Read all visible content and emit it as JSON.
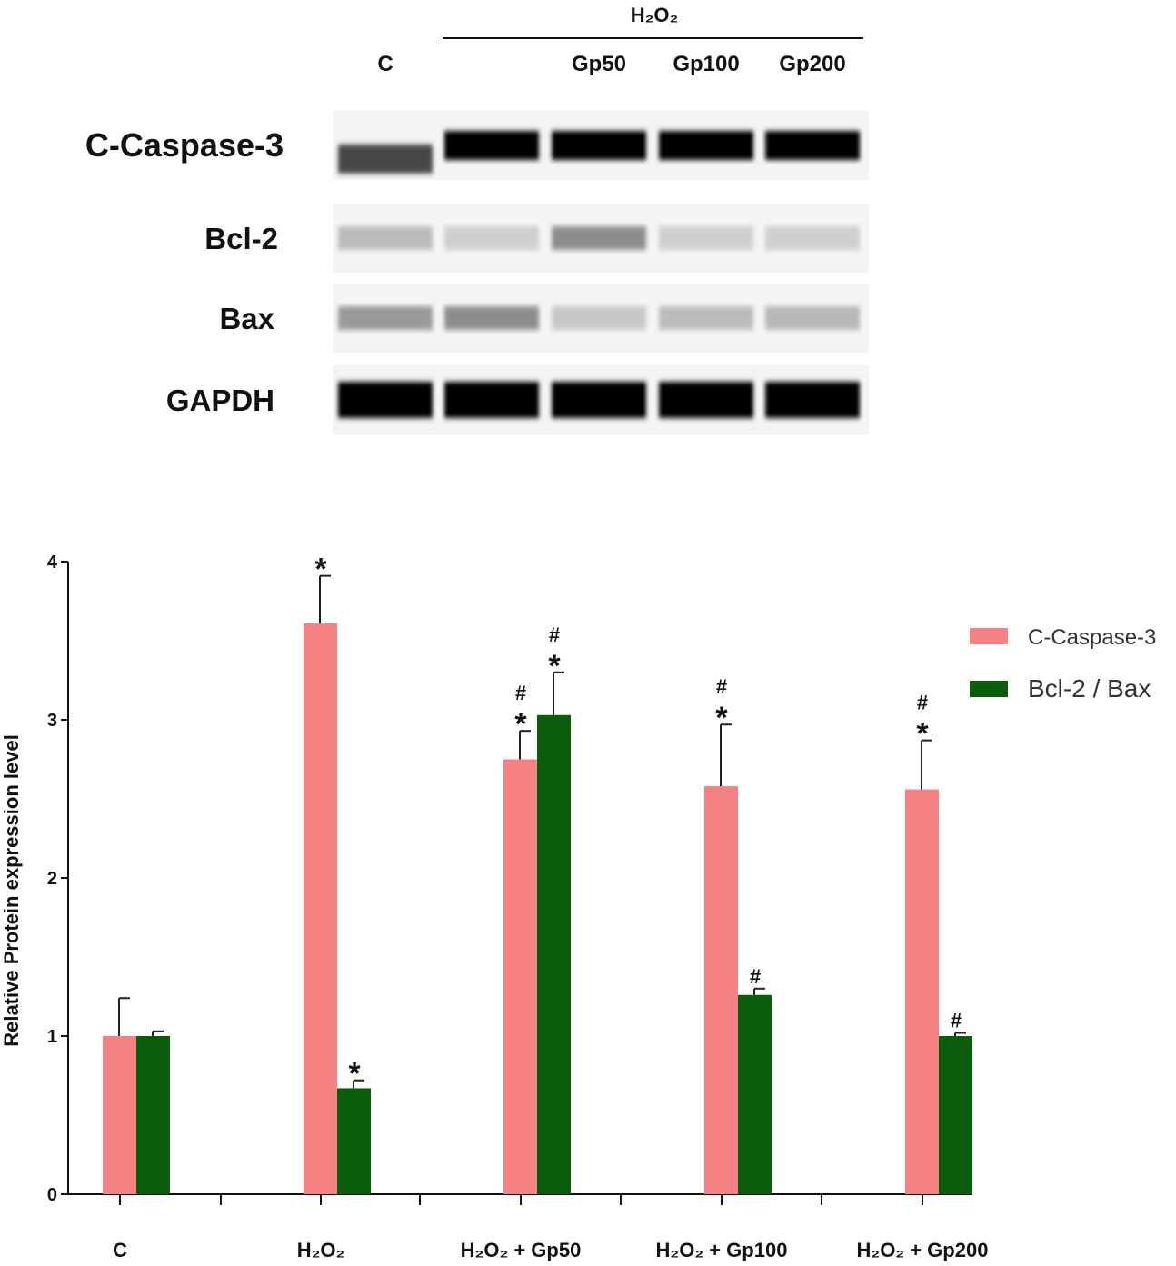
{
  "blot": {
    "group_header": "H₂O₂",
    "lanes": [
      "C",
      "",
      "Gp50",
      "Gp100",
      "Gp200"
    ],
    "rows": [
      {
        "label": "C-Caspase-3",
        "intensity": [
          0.7,
          1.0,
          1.0,
          1.0,
          1.0
        ]
      },
      {
        "label": "Bcl-2",
        "intensity": [
          0.2,
          0.12,
          0.4,
          0.12,
          0.12
        ]
      },
      {
        "label": "Bax",
        "intensity": [
          0.35,
          0.4,
          0.15,
          0.2,
          0.22
        ]
      },
      {
        "label": "GAPDH",
        "intensity": [
          1.0,
          1.0,
          1.0,
          1.0,
          1.0
        ]
      }
    ]
  },
  "chart_data": {
    "type": "bar",
    "ylabel": "Relative Protein expression level",
    "ylim": [
      0,
      4
    ],
    "yticks": [
      "0",
      "1",
      "2",
      "3",
      "4"
    ],
    "categories": [
      "C",
      "H₂O₂",
      "H₂O₂ + Gp50",
      "H₂O₂ + Gp100",
      "H₂O₂ + Gp200"
    ],
    "legend_position": "right",
    "series": [
      {
        "name": "C-Caspase-3",
        "color": "#f58283",
        "values": [
          1.0,
          3.61,
          2.75,
          2.58,
          2.56
        ],
        "errors": [
          0.24,
          0.3,
          0.18,
          0.39,
          0.31
        ],
        "annotations": [
          "",
          "*",
          "#*",
          "#*",
          "#*"
        ]
      },
      {
        "name": "Bcl-2 / Bax",
        "color": "#0b5c0b",
        "values": [
          1.0,
          0.67,
          3.03,
          1.26,
          1.0
        ],
        "errors": [
          0.03,
          0.05,
          0.27,
          0.04,
          0.02
        ],
        "annotations": [
          "",
          "*",
          "#*",
          "#",
          "#"
        ]
      }
    ]
  }
}
